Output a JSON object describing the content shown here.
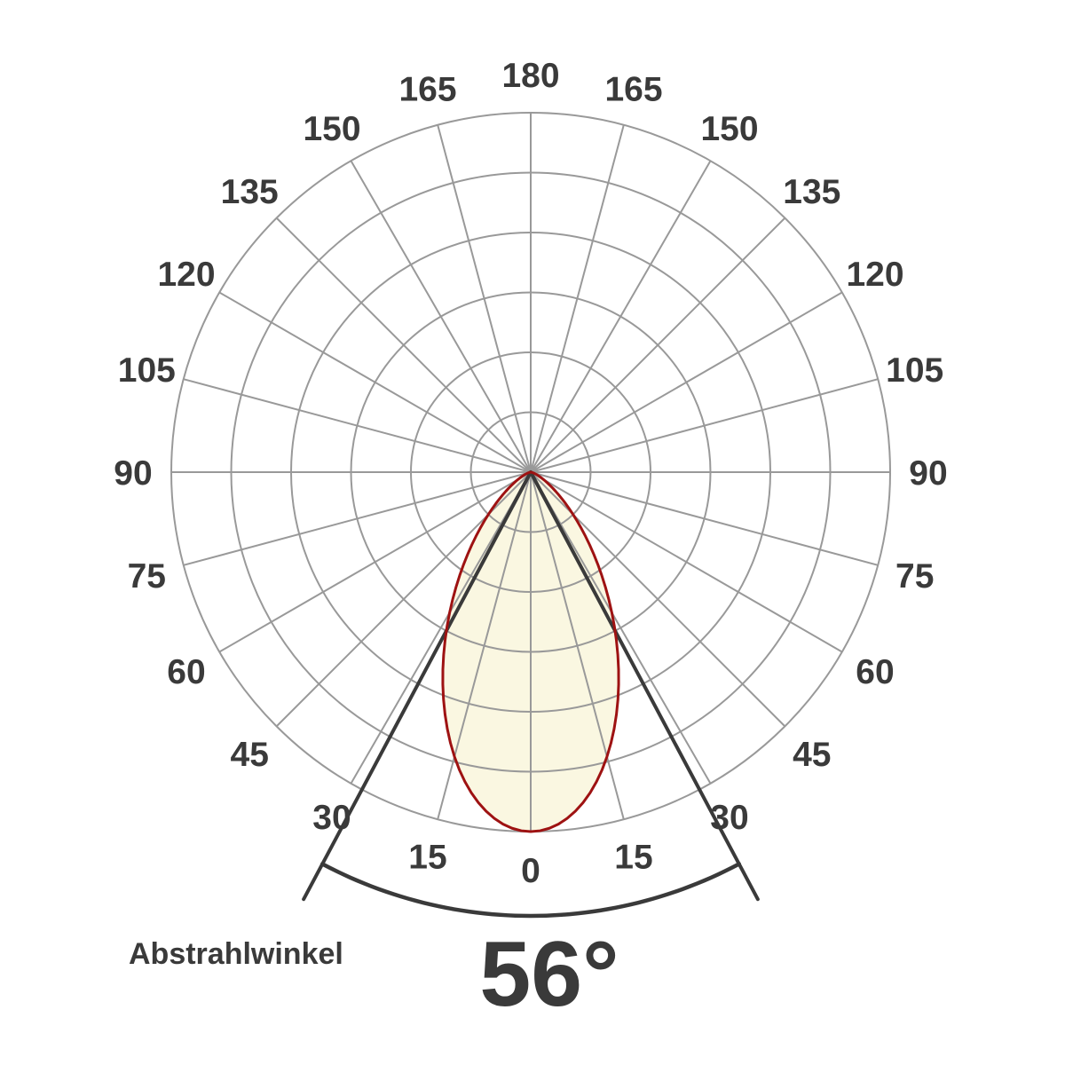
{
  "caption": {
    "label": "Abstrahlwinkel",
    "value": "56°"
  },
  "colors": {
    "background": "#ffffff",
    "grid": "#999999",
    "label_text": "#3a3a3a",
    "beam_marker": "#3a3a3a",
    "lobe_fill": "#faf7e1",
    "lobe_stroke": "#9e1212"
  },
  "chart_data": {
    "type": "polar",
    "subtype": "light-distribution-lobe",
    "title": "Abstrahlwinkel 56°",
    "angle_ticks_deg": [
      0,
      15,
      30,
      45,
      60,
      75,
      90,
      105,
      120,
      135,
      150,
      165,
      180
    ],
    "angle_tick_step_deg": 15,
    "angle_tick_mirrored": true,
    "radial_gridline_count": 6,
    "radial_axis_max_relative_intensity": 1.0,
    "beam_angle_deg": 56,
    "half_beam_angle_deg": 28,
    "beam_profile": {
      "angles_deg": [
        0,
        5,
        10,
        15,
        20,
        25,
        30,
        35,
        40,
        45,
        50,
        55,
        60,
        65,
        70,
        75
      ],
      "relative_intensity": [
        1.0,
        0.978,
        0.915,
        0.82,
        0.703,
        0.576,
        0.452,
        0.339,
        0.243,
        0.167,
        0.11,
        0.069,
        0.042,
        0.024,
        0.013,
        0.007
      ]
    },
    "beam_angle_markers": {
      "line_angles_deg": [
        -28,
        28
      ],
      "arc_span_deg": 56
    },
    "legend": [],
    "grid_on": true
  }
}
